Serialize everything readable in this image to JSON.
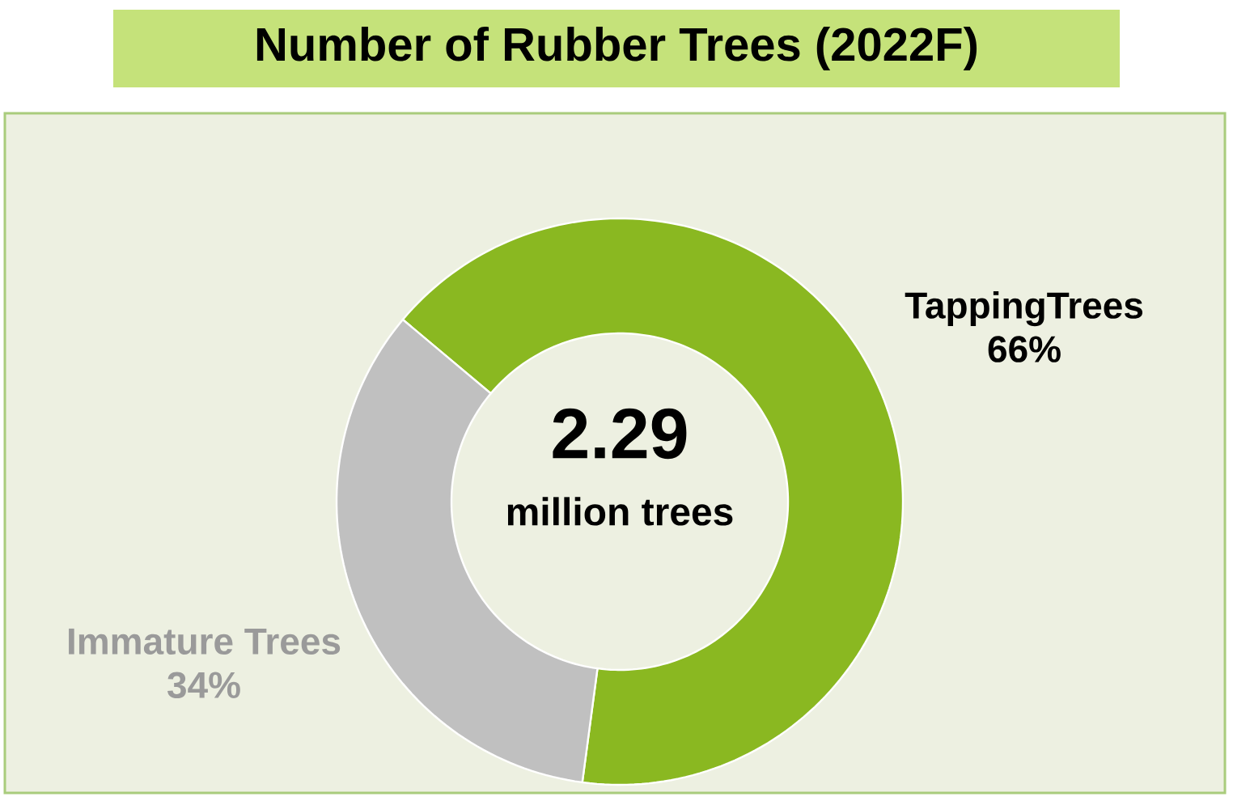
{
  "chart_data": {
    "type": "donut",
    "title": "Number of Rubber Trees (2022F)",
    "categories": [
      "TappingTrees",
      "Immature Trees"
    ],
    "values": [
      66,
      34
    ],
    "colors": [
      "#8ab821",
      "#c0c0c0"
    ],
    "value_labels": [
      "66%",
      "34%"
    ],
    "annotations": [
      "2.29",
      "million trees"
    ]
  }
}
